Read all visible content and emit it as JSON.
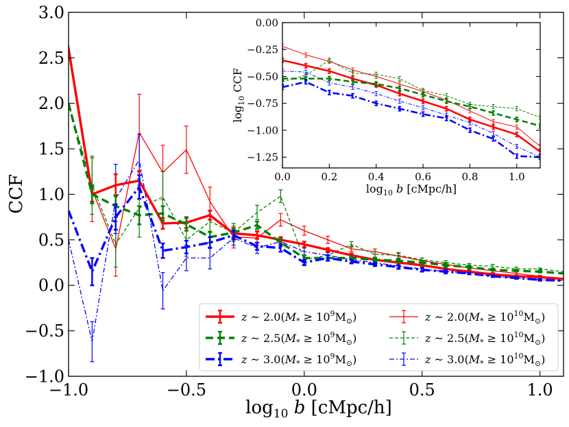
{
  "chart_data": [
    {
      "type": "line",
      "panel": "main",
      "xlabel": "log10 b [cMpc/h]",
      "ylabel": "CCF",
      "xlim": [
        -1.0,
        1.1
      ],
      "ylim": [
        -1.0,
        3.0
      ],
      "xticks": [
        -1.0,
        -0.5,
        0.0,
        0.5,
        1.0
      ],
      "xtick_labels": [
        "−1.0",
        "−0.5",
        "0.0",
        "0.5",
        "1.0"
      ],
      "yticks": [
        -1.0,
        -0.5,
        0.0,
        0.5,
        1.0,
        1.5,
        2.0,
        2.5,
        3.0
      ],
      "ytick_labels": [
        "−1.0",
        "−0.5",
        "0.0",
        "0.5",
        "1.0",
        "1.5",
        "2.0",
        "2.5",
        "3.0"
      ],
      "x": [
        -1.0,
        -0.9,
        -0.8,
        -0.7,
        -0.6,
        -0.5,
        -0.4,
        -0.3,
        -0.2,
        -0.1,
        0.0,
        0.1,
        0.2,
        0.3,
        0.4,
        0.5,
        0.6,
        0.7,
        0.8,
        0.9,
        1.0,
        1.1
      ],
      "series": [
        {
          "name": "z ~ 2.0 (M* >= 10^9 Msun)",
          "color": "#ff0000",
          "style": "thick-solid",
          "values": [
            2.6,
            1.0,
            1.1,
            1.15,
            0.68,
            0.69,
            0.77,
            0.57,
            0.55,
            0.5,
            0.45,
            0.39,
            0.33,
            0.28,
            0.25,
            0.22,
            0.18,
            0.15,
            0.12,
            0.1,
            0.09,
            0.07
          ],
          "err": [
            0,
            0.08,
            0.12,
            0.1,
            0.06,
            0.06,
            0.05,
            0.05,
            0.04,
            0.03,
            0.03,
            0.02,
            0.02,
            0.02,
            0.02,
            0.02,
            0.02,
            0.02,
            0.01,
            0.01,
            0.01,
            0
          ]
        },
        {
          "name": "z ~ 2.5 (M* >= 10^9 Msun)",
          "color": "#008000",
          "style": "thick-dashed",
          "values": [
            2.0,
            1.0,
            0.87,
            0.77,
            0.79,
            0.67,
            0.53,
            0.58,
            0.66,
            0.47,
            0.3,
            0.3,
            0.3,
            0.28,
            0.27,
            0.25,
            0.22,
            0.2,
            0.17,
            0.16,
            0.15,
            0.13
          ],
          "err": [
            0,
            0.1,
            0.12,
            0.1,
            0.08,
            0.07,
            0.06,
            0.05,
            0.04,
            0.04,
            0.03,
            0.03,
            0.02,
            0.02,
            0.02,
            0.02,
            0.02,
            0.02,
            0.01,
            0.01,
            0.01,
            0
          ]
        },
        {
          "name": "z ~ 3.0 (M* >= 10^9 Msun)",
          "color": "#0000ff",
          "style": "thick-dashdot",
          "values": [
            0.82,
            0.15,
            0.75,
            1.08,
            0.38,
            0.42,
            0.47,
            0.55,
            0.43,
            0.41,
            0.25,
            0.3,
            0.26,
            0.23,
            0.2,
            0.17,
            0.15,
            0.13,
            0.1,
            0.08,
            0.06,
            0.05
          ],
          "err": [
            0,
            0.15,
            0.14,
            0.13,
            0.08,
            0.07,
            0.06,
            0.05,
            0.04,
            0.04,
            0.03,
            0.03,
            0.02,
            0.02,
            0.02,
            0.02,
            0.02,
            0.01,
            0.01,
            0.01,
            0.01,
            0
          ]
        },
        {
          "name": "z ~ 2.0 (M* >= 10^10 Msun)",
          "color": "#ff0000",
          "style": "thin-solid",
          "values": [
            2.65,
            1.05,
            0.4,
            1.68,
            1.24,
            1.49,
            0.92,
            0.53,
            0.52,
            0.72,
            0.6,
            0.5,
            0.4,
            0.37,
            0.32,
            0.27,
            0.23,
            0.19,
            0.16,
            0.13,
            0.1,
            0.07
          ],
          "err": [
            0,
            0.35,
            0.3,
            0.42,
            0.3,
            0.26,
            0.16,
            0.12,
            0.08,
            0.07,
            0.05,
            0.04,
            0.03,
            0.03,
            0.03,
            0.03,
            0.02,
            0.02,
            0.02,
            0.02,
            0.01,
            0
          ]
        },
        {
          "name": "z ~ 2.5 (M* >= 10^10 Msun)",
          "color": "#008000",
          "style": "thin-dashed",
          "values": [
            2.0,
            1.1,
            0.45,
            0.85,
            0.97,
            0.5,
            0.7,
            0.58,
            0.8,
            0.98,
            0.28,
            0.33,
            0.45,
            0.34,
            0.33,
            0.28,
            0.25,
            0.22,
            0.21,
            0.18,
            0.18,
            0.15
          ],
          "err": [
            0,
            0.32,
            0.25,
            0.32,
            0.28,
            0.18,
            0.12,
            0.1,
            0.08,
            0.07,
            0.05,
            0.04,
            0.03,
            0.03,
            0.03,
            0.02,
            0.02,
            0.02,
            0.02,
            0.02,
            0.01,
            0
          ]
        },
        {
          "name": "z ~ 3.0 (M* >= 10^10 Msun)",
          "color": "#0000ff",
          "style": "thin-dashdot",
          "values": [
            0.5,
            -0.62,
            0.95,
            1.38,
            -0.06,
            0.3,
            0.3,
            0.52,
            0.41,
            0.48,
            0.37,
            0.33,
            0.28,
            0.25,
            0.21,
            0.18,
            0.15,
            0.14,
            0.1,
            0.08,
            0.06,
            0.05
          ],
          "err": [
            0,
            0.22,
            0.38,
            0.28,
            0.2,
            0.14,
            0.12,
            0.08,
            0.06,
            0.05,
            0.04,
            0.03,
            0.03,
            0.02,
            0.02,
            0.02,
            0.02,
            0.02,
            0.01,
            0.01,
            0.01,
            0
          ]
        }
      ]
    },
    {
      "type": "line",
      "panel": "inset",
      "xlabel": "log10 b [cMpc/h]",
      "ylabel": "log10 CCF",
      "xlim": [
        0.0,
        1.1
      ],
      "ylim": [
        -1.35,
        0.0
      ],
      "xticks": [
        0.0,
        0.2,
        0.4,
        0.6,
        0.8,
        1.0
      ],
      "xtick_labels": [
        "0.0",
        "0.2",
        "0.4",
        "0.6",
        "0.8",
        "1.0"
      ],
      "yticks": [
        -1.25,
        -1.0,
        -0.75,
        -0.5,
        -0.25,
        0.0
      ],
      "ytick_labels": [
        "−1.25",
        "−1.00",
        "−0.75",
        "−0.50",
        "−0.25",
        "0.00"
      ],
      "x": [
        0.0,
        0.1,
        0.2,
        0.3,
        0.4,
        0.5,
        0.6,
        0.7,
        0.8,
        0.9,
        1.0,
        1.1
      ],
      "series": [
        {
          "name": "z ~ 2.0 (M* >= 10^9 Msun)",
          "color": "#ff0000",
          "style": "thick-solid",
          "values": [
            -0.35,
            -0.4,
            -0.45,
            -0.52,
            -0.58,
            -0.66,
            -0.73,
            -0.8,
            -0.9,
            -0.97,
            -1.04,
            -1.2
          ]
        },
        {
          "name": "z ~ 2.5 (M* >= 10^9 Msun)",
          "color": "#008000",
          "style": "thick-dashed",
          "values": [
            -0.52,
            -0.52,
            -0.52,
            -0.55,
            -0.57,
            -0.61,
            -0.67,
            -0.73,
            -0.78,
            -0.84,
            -0.9,
            -0.96
          ]
        },
        {
          "name": "z ~ 3.0 (M* >= 10^9 Msun)",
          "color": "#0000ff",
          "style": "thick-dashdot",
          "values": [
            -0.6,
            -0.55,
            -0.65,
            -0.68,
            -0.75,
            -0.8,
            -0.85,
            -0.89,
            -1.0,
            -1.08,
            -1.24,
            -1.25
          ]
        },
        {
          "name": "z ~ 2.0 (M* >= 10^10 Msun)",
          "color": "#ff0000",
          "style": "thin-solid",
          "values": [
            -0.22,
            -0.3,
            -0.36,
            -0.44,
            -0.5,
            -0.57,
            -0.64,
            -0.72,
            -0.82,
            -0.92,
            -0.97,
            -1.15
          ]
        },
        {
          "name": "z ~ 2.5 (M* >= 10^10 Msun)",
          "color": "#008000",
          "style": "thin-dashed",
          "values": [
            -0.55,
            -0.49,
            -0.35,
            -0.47,
            -0.48,
            -0.52,
            -0.63,
            -0.68,
            -0.76,
            -0.78,
            -0.8,
            -0.88
          ]
        },
        {
          "name": "z ~ 3.0 (M* >= 10^10 Msun)",
          "color": "#0000ff",
          "style": "thin-dashdot",
          "values": [
            -0.45,
            -0.46,
            -0.56,
            -0.6,
            -0.66,
            -0.73,
            -0.79,
            -0.86,
            -0.93,
            -1.03,
            -1.15,
            -1.25
          ]
        }
      ]
    }
  ],
  "legend": {
    "entries": [
      {
        "prefix": "z ~ 2.0(M",
        "exp": "9",
        "color": "#ff0000",
        "style": "thick-solid"
      },
      {
        "prefix": "z ~ 2.5(M",
        "exp": "9",
        "color": "#008000",
        "style": "thick-dashed"
      },
      {
        "prefix": "z ~ 3.0(M",
        "exp": "9",
        "color": "#0000ff",
        "style": "thick-dashdot"
      },
      {
        "prefix": "z ~ 2.0(M",
        "exp": "10",
        "color": "#ff0000",
        "style": "thin-solid"
      },
      {
        "prefix": "z ~ 2.5(M",
        "exp": "10",
        "color": "#008000",
        "style": "thin-dashed"
      },
      {
        "prefix": "z ~ 3.0(M",
        "exp": "10",
        "color": "#0000ff",
        "style": "thin-dashdot"
      }
    ],
    "mass_symbol": "*",
    "relation": " ≥ 10",
    "unit": "M",
    "unit_sub": "⊙",
    "close": ")"
  }
}
